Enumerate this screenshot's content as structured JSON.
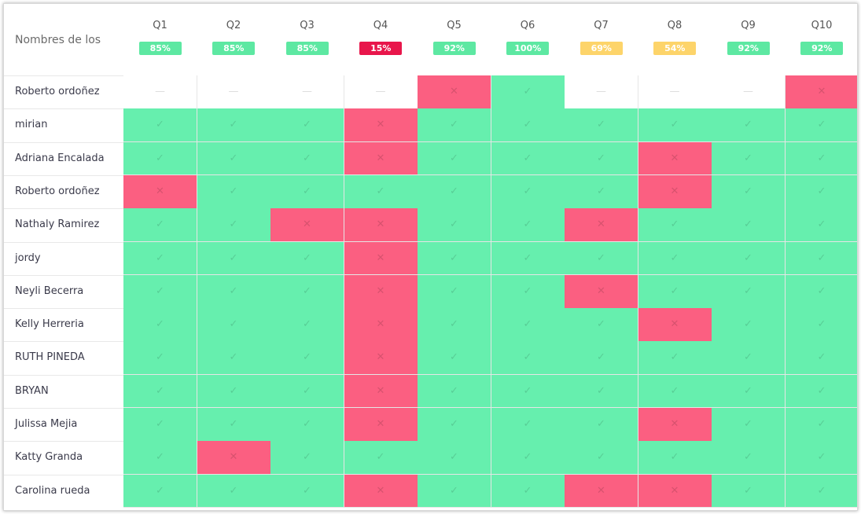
{
  "header": {
    "title": "Nombres de los"
  },
  "columns": [
    {
      "label": "Q1",
      "score": "85%",
      "color": "#5de8a2"
    },
    {
      "label": "Q2",
      "score": "85%",
      "color": "#5de8a2"
    },
    {
      "label": "Q3",
      "score": "85%",
      "color": "#5de8a2"
    },
    {
      "label": "Q4",
      "score": "15%",
      "color": "#e8164b"
    },
    {
      "label": "Q5",
      "score": "92%",
      "color": "#5de8a2"
    },
    {
      "label": "Q6",
      "score": "100%",
      "color": "#5de8a2"
    },
    {
      "label": "Q7",
      "score": "69%",
      "color": "#fdd46a"
    },
    {
      "label": "Q8",
      "score": "54%",
      "color": "#fdd46a"
    },
    {
      "label": "Q9",
      "score": "92%",
      "color": "#5de8a2"
    },
    {
      "label": "Q10",
      "score": "92%",
      "color": "#5de8a2"
    }
  ],
  "rows": [
    {
      "name": "Roberto ordoñez",
      "cells": [
        {
          "m": "—",
          "fill": "#ffffff"
        },
        {
          "m": "—",
          "fill": "#ffffff"
        },
        {
          "m": "—",
          "fill": "#ffffff"
        },
        {
          "m": "—",
          "fill": "#ffffff"
        },
        {
          "m": "✕",
          "fill": "#fb5f81"
        },
        {
          "m": "✓",
          "fill": "#66efae"
        },
        {
          "m": "—",
          "fill": "#ffffff"
        },
        {
          "m": "—",
          "fill": "#ffffff"
        },
        {
          "m": "—",
          "fill": "#ffffff"
        },
        {
          "m": "✕",
          "fill": "#fb5f81"
        }
      ]
    },
    {
      "name": "mirian",
      "cells": [
        {
          "m": "✓",
          "fill": "#66efae"
        },
        {
          "m": "✓",
          "fill": "#66efae"
        },
        {
          "m": "✓",
          "fill": "#66efae"
        },
        {
          "m": "✕",
          "fill": "#fb5f81"
        },
        {
          "m": "✓",
          "fill": "#66efae"
        },
        {
          "m": "✓",
          "fill": "#66efae"
        },
        {
          "m": "✓",
          "fill": "#66efae"
        },
        {
          "m": "✓",
          "fill": "#66efae"
        },
        {
          "m": "✓",
          "fill": "#66efae"
        },
        {
          "m": "✓",
          "fill": "#66efae"
        }
      ]
    },
    {
      "name": "Adriana Encalada",
      "cells": [
        {
          "m": "✓",
          "fill": "#66efae"
        },
        {
          "m": "✓",
          "fill": "#66efae"
        },
        {
          "m": "✓",
          "fill": "#66efae"
        },
        {
          "m": "✕",
          "fill": "#fb5f81"
        },
        {
          "m": "✓",
          "fill": "#66efae"
        },
        {
          "m": "✓",
          "fill": "#66efae"
        },
        {
          "m": "✓",
          "fill": "#66efae"
        },
        {
          "m": "✕",
          "fill": "#fb5f81"
        },
        {
          "m": "✓",
          "fill": "#66efae"
        },
        {
          "m": "✓",
          "fill": "#66efae"
        }
      ]
    },
    {
      "name": "Roberto ordoñez",
      "cells": [
        {
          "m": "✕",
          "fill": "#fb5f81"
        },
        {
          "m": "✓",
          "fill": "#66efae"
        },
        {
          "m": "✓",
          "fill": "#66efae"
        },
        {
          "m": "✓",
          "fill": "#66efae"
        },
        {
          "m": "✓",
          "fill": "#66efae"
        },
        {
          "m": "✓",
          "fill": "#66efae"
        },
        {
          "m": "✓",
          "fill": "#66efae"
        },
        {
          "m": "✕",
          "fill": "#fb5f81"
        },
        {
          "m": "✓",
          "fill": "#66efae"
        },
        {
          "m": "✓",
          "fill": "#66efae"
        }
      ]
    },
    {
      "name": "Nathaly Ramirez",
      "cells": [
        {
          "m": "✓",
          "fill": "#66efae"
        },
        {
          "m": "✓",
          "fill": "#66efae"
        },
        {
          "m": "✕",
          "fill": "#fb5f81"
        },
        {
          "m": "✕",
          "fill": "#fb5f81"
        },
        {
          "m": "✓",
          "fill": "#66efae"
        },
        {
          "m": "✓",
          "fill": "#66efae"
        },
        {
          "m": "✕",
          "fill": "#fb5f81"
        },
        {
          "m": "✓",
          "fill": "#66efae"
        },
        {
          "m": "✓",
          "fill": "#66efae"
        },
        {
          "m": "✓",
          "fill": "#66efae"
        }
      ]
    },
    {
      "name": "jordy",
      "cells": [
        {
          "m": "✓",
          "fill": "#66efae"
        },
        {
          "m": "✓",
          "fill": "#66efae"
        },
        {
          "m": "✓",
          "fill": "#66efae"
        },
        {
          "m": "✕",
          "fill": "#fb5f81"
        },
        {
          "m": "✓",
          "fill": "#66efae"
        },
        {
          "m": "✓",
          "fill": "#66efae"
        },
        {
          "m": "✓",
          "fill": "#66efae"
        },
        {
          "m": "✓",
          "fill": "#66efae"
        },
        {
          "m": "✓",
          "fill": "#66efae"
        },
        {
          "m": "✓",
          "fill": "#66efae"
        }
      ]
    },
    {
      "name": "Neyli Becerra",
      "cells": [
        {
          "m": "✓",
          "fill": "#66efae"
        },
        {
          "m": "✓",
          "fill": "#66efae"
        },
        {
          "m": "✓",
          "fill": "#66efae"
        },
        {
          "m": "✕",
          "fill": "#fb5f81"
        },
        {
          "m": "✓",
          "fill": "#66efae"
        },
        {
          "m": "✓",
          "fill": "#66efae"
        },
        {
          "m": "✕",
          "fill": "#fb5f81"
        },
        {
          "m": "✓",
          "fill": "#66efae"
        },
        {
          "m": "✓",
          "fill": "#66efae"
        },
        {
          "m": "✓",
          "fill": "#66efae"
        }
      ]
    },
    {
      "name": "Kelly Herreria",
      "cells": [
        {
          "m": "✓",
          "fill": "#66efae"
        },
        {
          "m": "✓",
          "fill": "#66efae"
        },
        {
          "m": "✓",
          "fill": "#66efae"
        },
        {
          "m": "✕",
          "fill": "#fb5f81"
        },
        {
          "m": "✓",
          "fill": "#66efae"
        },
        {
          "m": "✓",
          "fill": "#66efae"
        },
        {
          "m": "✓",
          "fill": "#66efae"
        },
        {
          "m": "✕",
          "fill": "#fb5f81"
        },
        {
          "m": "✓",
          "fill": "#66efae"
        },
        {
          "m": "✓",
          "fill": "#66efae"
        }
      ]
    },
    {
      "name": "RUTH PINEDA",
      "cells": [
        {
          "m": "✓",
          "fill": "#66efae"
        },
        {
          "m": "✓",
          "fill": "#66efae"
        },
        {
          "m": "✓",
          "fill": "#66efae"
        },
        {
          "m": "✕",
          "fill": "#fb5f81"
        },
        {
          "m": "✓",
          "fill": "#66efae"
        },
        {
          "m": "✓",
          "fill": "#66efae"
        },
        {
          "m": "✓",
          "fill": "#66efae"
        },
        {
          "m": "✓",
          "fill": "#66efae"
        },
        {
          "m": "✓",
          "fill": "#66efae"
        },
        {
          "m": "✓",
          "fill": "#66efae"
        }
      ]
    },
    {
      "name": "BRYAN",
      "cells": [
        {
          "m": "✓",
          "fill": "#66efae"
        },
        {
          "m": "✓",
          "fill": "#66efae"
        },
        {
          "m": "✓",
          "fill": "#66efae"
        },
        {
          "m": "✕",
          "fill": "#fb5f81"
        },
        {
          "m": "✓",
          "fill": "#66efae"
        },
        {
          "m": "✓",
          "fill": "#66efae"
        },
        {
          "m": "✓",
          "fill": "#66efae"
        },
        {
          "m": "✓",
          "fill": "#66efae"
        },
        {
          "m": "✓",
          "fill": "#66efae"
        },
        {
          "m": "✓",
          "fill": "#66efae"
        }
      ]
    },
    {
      "name": "Julissa Mejia",
      "cells": [
        {
          "m": "✓",
          "fill": "#66efae"
        },
        {
          "m": "✓",
          "fill": "#66efae"
        },
        {
          "m": "✓",
          "fill": "#66efae"
        },
        {
          "m": "✕",
          "fill": "#fb5f81"
        },
        {
          "m": "✓",
          "fill": "#66efae"
        },
        {
          "m": "✓",
          "fill": "#66efae"
        },
        {
          "m": "✓",
          "fill": "#66efae"
        },
        {
          "m": "✕",
          "fill": "#fb5f81"
        },
        {
          "m": "✓",
          "fill": "#66efae"
        },
        {
          "m": "✓",
          "fill": "#66efae"
        }
      ]
    },
    {
      "name": "Katty Granda",
      "cells": [
        {
          "m": "✓",
          "fill": "#66efae"
        },
        {
          "m": "✕",
          "fill": "#fb5f81"
        },
        {
          "m": "✓",
          "fill": "#66efae"
        },
        {
          "m": "✓",
          "fill": "#66efae"
        },
        {
          "m": "✓",
          "fill": "#66efae"
        },
        {
          "m": "✓",
          "fill": "#66efae"
        },
        {
          "m": "✓",
          "fill": "#66efae"
        },
        {
          "m": "✓",
          "fill": "#66efae"
        },
        {
          "m": "✓",
          "fill": "#66efae"
        },
        {
          "m": "✓",
          "fill": "#66efae"
        }
      ]
    },
    {
      "name": "Carolina rueda",
      "cells": [
        {
          "m": "✓",
          "fill": "#66efae"
        },
        {
          "m": "✓",
          "fill": "#66efae"
        },
        {
          "m": "✓",
          "fill": "#66efae"
        },
        {
          "m": "✕",
          "fill": "#fb5f81"
        },
        {
          "m": "✓",
          "fill": "#66efae"
        },
        {
          "m": "✓",
          "fill": "#66efae"
        },
        {
          "m": "✕",
          "fill": "#fb5f81"
        },
        {
          "m": "✕",
          "fill": "#fb5f81"
        },
        {
          "m": "✓",
          "fill": "#66efae"
        },
        {
          "m": "✓",
          "fill": "#66efae"
        }
      ]
    }
  ]
}
